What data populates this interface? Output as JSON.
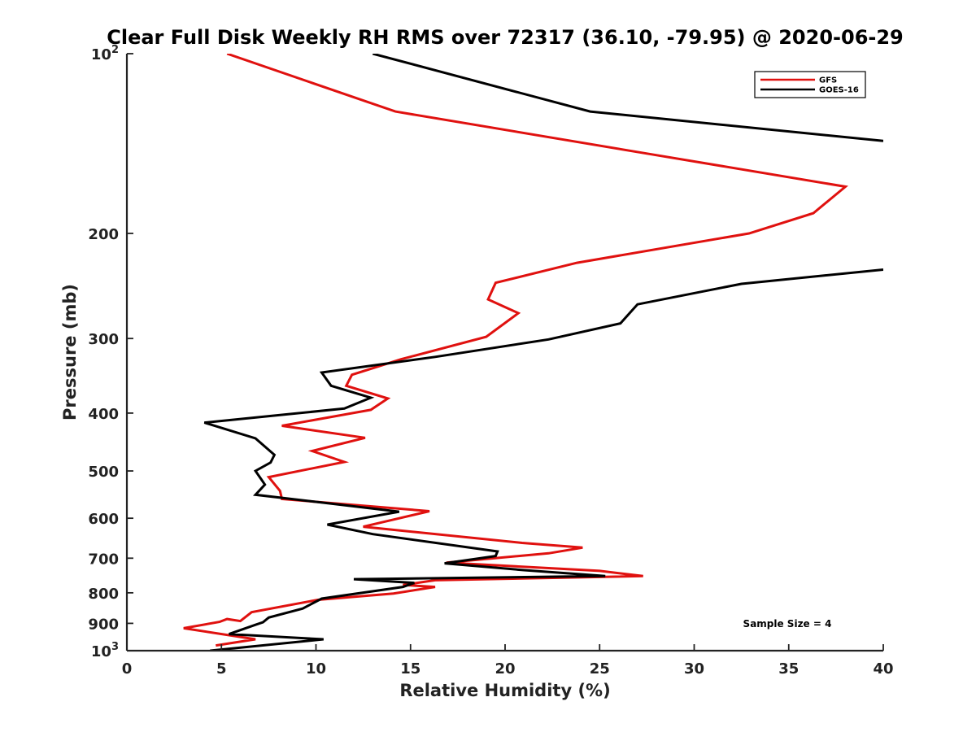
{
  "chart_data": {
    "type": "line",
    "title": "Clear Full Disk Weekly RH RMS over 72317 (36.10, -79.95) @ 2020-06-29",
    "xlabel": "Relative Humidity (%)",
    "ylabel": "Pressure (mb)",
    "xlim": [
      0,
      40
    ],
    "ylim": [
      1000,
      100
    ],
    "y_scale": "log",
    "y_reversed": true,
    "grid": false,
    "legend_position": "top-right",
    "x_ticks": [
      "0",
      "5",
      "10",
      "15",
      "20",
      "25",
      "30",
      "35",
      "40"
    ],
    "y_ticks": [
      {
        "value": 100,
        "base": "10",
        "exp": "2"
      },
      {
        "value": 200,
        "base": "200",
        "exp": ""
      },
      {
        "value": 300,
        "base": "300",
        "exp": ""
      },
      {
        "value": 400,
        "base": "400",
        "exp": ""
      },
      {
        "value": 500,
        "base": "500",
        "exp": ""
      },
      {
        "value": 600,
        "base": "600",
        "exp": ""
      },
      {
        "value": 700,
        "base": "700",
        "exp": ""
      },
      {
        "value": 800,
        "base": "800",
        "exp": ""
      },
      {
        "value": 900,
        "base": "900",
        "exp": ""
      },
      {
        "value": 1000,
        "base": "10",
        "exp": "3"
      }
    ],
    "series": [
      {
        "name": "GFS",
        "color": "#e0110f",
        "points": [
          [
            5.3,
            100
          ],
          [
            14.2,
            125
          ],
          [
            27.5,
            147
          ],
          [
            38.0,
            167
          ],
          [
            36.3,
            185
          ],
          [
            32.9,
            200
          ],
          [
            23.8,
            224
          ],
          [
            19.5,
            242
          ],
          [
            19.1,
            258
          ],
          [
            20.7,
            272
          ],
          [
            19.0,
            298
          ],
          [
            14.5,
            325
          ],
          [
            11.9,
            345
          ],
          [
            11.6,
            360
          ],
          [
            13.8,
            378
          ],
          [
            12.9,
            395
          ],
          [
            8.2,
            420
          ],
          [
            12.6,
            440
          ],
          [
            9.8,
            463
          ],
          [
            11.5,
            483
          ],
          [
            7.5,
            512
          ],
          [
            8.1,
            540
          ],
          [
            8.2,
            557
          ],
          [
            16.0,
            584
          ],
          [
            12.5,
            620
          ],
          [
            20.9,
            660
          ],
          [
            24.1,
            672
          ],
          [
            22.3,
            687
          ],
          [
            16.9,
            712
          ],
          [
            25.0,
            735
          ],
          [
            27.3,
            750
          ],
          [
            16.3,
            762
          ],
          [
            14.6,
            776
          ],
          [
            16.3,
            782
          ],
          [
            14.1,
            802
          ],
          [
            10.1,
            822
          ],
          [
            6.6,
            862
          ],
          [
            6.0,
            892
          ],
          [
            5.3,
            885
          ],
          [
            4.9,
            895
          ],
          [
            3.0,
            917
          ],
          [
            6.8,
            957
          ],
          [
            4.7,
            980
          ]
        ]
      },
      {
        "name": "GOES-16",
        "color": "#000000",
        "points": [
          [
            13.0,
            100
          ],
          [
            24.5,
            125
          ],
          [
            40.0,
            140
          ],
          null,
          [
            40.0,
            230
          ],
          [
            32.5,
            243
          ],
          [
            27.0,
            263
          ],
          [
            26.1,
            283
          ],
          [
            22.3,
            301
          ],
          [
            16.3,
            322
          ],
          [
            10.3,
            342
          ],
          [
            10.8,
            360
          ],
          [
            12.9,
            377
          ],
          [
            11.5,
            393
          ],
          [
            4.1,
            415
          ],
          [
            6.8,
            441
          ],
          [
            7.8,
            470
          ],
          [
            7.6,
            484
          ],
          [
            6.8,
            500
          ],
          [
            7.1,
            516
          ],
          [
            7.3,
            527
          ],
          [
            6.8,
            548
          ],
          [
            14.4,
            585
          ],
          [
            10.6,
            615
          ],
          [
            13.0,
            638
          ],
          [
            19.6,
            682
          ],
          [
            19.5,
            694
          ],
          [
            16.8,
            714
          ],
          [
            21.0,
            733
          ],
          [
            25.3,
            750
          ],
          [
            12.0,
            759
          ],
          [
            15.2,
            770
          ],
          [
            14.6,
            782
          ],
          [
            10.3,
            818
          ],
          [
            9.3,
            850
          ],
          [
            7.5,
            880
          ],
          [
            7.2,
            896
          ],
          [
            6.8,
            905
          ],
          [
            5.4,
            938
          ],
          [
            10.4,
            957
          ],
          [
            4.4,
            1000
          ]
        ]
      }
    ],
    "annotation": "Sample Size = 4"
  }
}
